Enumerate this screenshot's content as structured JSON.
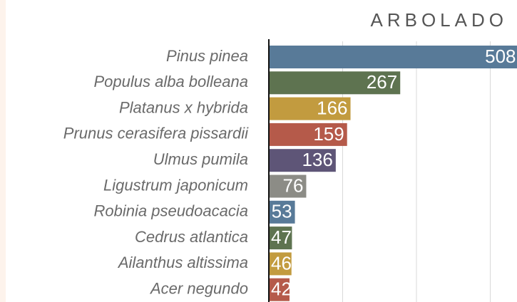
{
  "chart_data": {
    "type": "bar",
    "orientation": "horizontal",
    "title": "ARBOLADO",
    "categories": [
      "Pinus pinea",
      "Populus alba bolleana",
      "Platanus x hybrida",
      "Prunus cerasifera pissardii",
      "Ulmus pumila",
      "Ligustrum japonicum",
      "Robinia pseudoacacia",
      "Cedrus atlantica",
      "Ailanthus altissima",
      "Acer negundo"
    ],
    "values": [
      508,
      267,
      166,
      159,
      136,
      76,
      53,
      47,
      46,
      42
    ],
    "colors": [
      "#587a98",
      "#5e7350",
      "#c29b3f",
      "#b55a4a",
      "#5e5577",
      "#8c8c86",
      "#587a98",
      "#5e7350",
      "#c29b3f",
      "#b55a4a"
    ],
    "xlim": [
      0,
      500
    ],
    "xticks": [
      150,
      300,
      450
    ],
    "grid": true
  }
}
